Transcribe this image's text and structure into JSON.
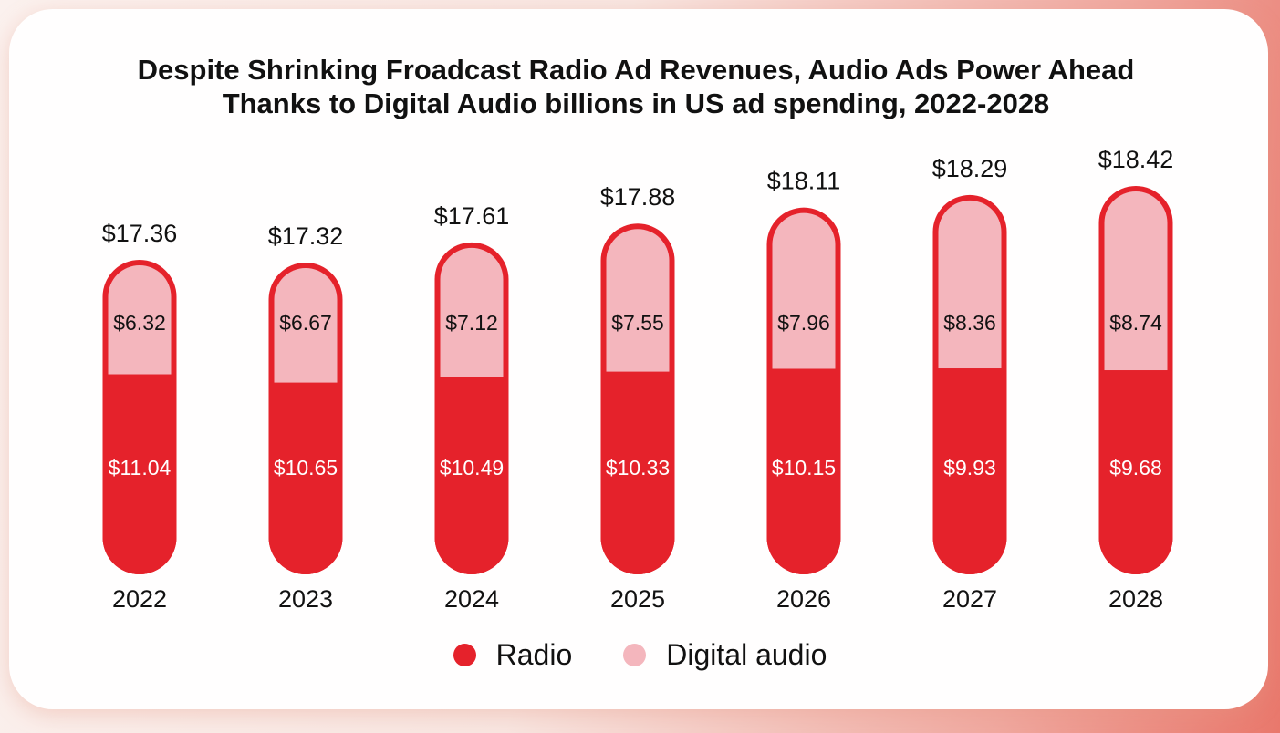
{
  "colors": {
    "radio": "#e5222b",
    "digital_audio": "#f4b6bd",
    "text_dark": "#111111",
    "text_light": "#ffffff"
  },
  "chart_data": {
    "type": "bar",
    "stacked": true,
    "title": "Despite Shrinking Froadcast Radio Ad Revenues, Audio Ads Power Ahead",
    "subtitle": "Thanks to Digital Audio billions in US ad spending, 2022-2028",
    "categories": [
      "2022",
      "2023",
      "2024",
      "2025",
      "2026",
      "2027",
      "2028"
    ],
    "series": [
      {
        "name": "Radio",
        "values": [
          11.04,
          10.65,
          10.49,
          10.33,
          10.15,
          9.93,
          9.68
        ],
        "labels": [
          "$11.04",
          "$10.65",
          "$10.49",
          "$10.33",
          "$10.15",
          "$9.93",
          "$9.68"
        ]
      },
      {
        "name": "Digital audio",
        "values": [
          6.32,
          6.67,
          7.12,
          7.55,
          7.96,
          8.36,
          8.74
        ],
        "labels": [
          "$6.32",
          "$6.67",
          "$7.12",
          "$7.55",
          "$7.96",
          "$8.36",
          "$8.74"
        ]
      }
    ],
    "totals": [
      17.36,
      17.32,
      17.61,
      17.88,
      18.11,
      18.29,
      18.42
    ],
    "total_labels": [
      "$17.36",
      "$17.32",
      "$17.61",
      "$17.88",
      "$18.11",
      "$18.29",
      "$18.42"
    ],
    "xlabel": "",
    "ylabel": "",
    "grid": false,
    "legend_position": "bottom-center"
  },
  "legend": {
    "items": [
      {
        "label": "Radio"
      },
      {
        "label": "Digital audio"
      }
    ]
  }
}
